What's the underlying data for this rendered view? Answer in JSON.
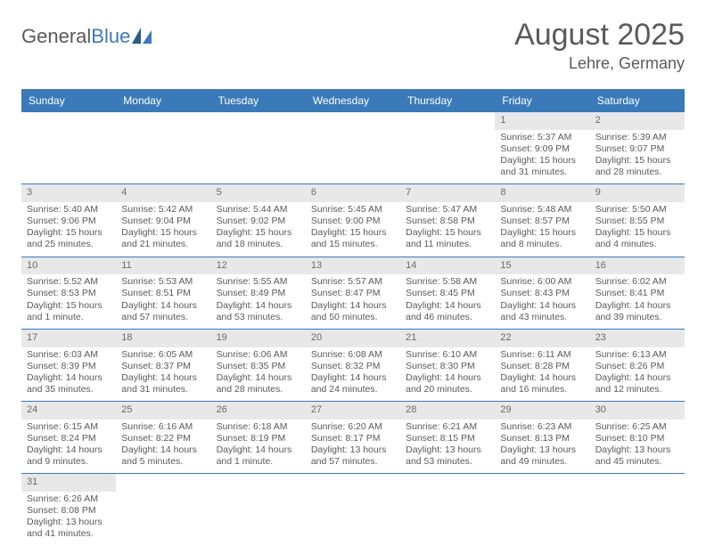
{
  "logo": {
    "text1": "General",
    "text2": "Blue"
  },
  "title": "August 2025",
  "location": "Lehre, Germany",
  "day_names": [
    "Sunday",
    "Monday",
    "Tuesday",
    "Wednesday",
    "Thursday",
    "Friday",
    "Saturday"
  ],
  "colors": {
    "header_bg": "#3a7ab8",
    "header_text": "#ffffff",
    "daynum_bg": "#e8e8e8",
    "week_border": "#3a7ab8",
    "text": "#5a5a5a"
  },
  "weeks": [
    [
      null,
      null,
      null,
      null,
      null,
      {
        "n": "1",
        "sr": "Sunrise: 5:37 AM",
        "ss": "Sunset: 9:09 PM",
        "d1": "Daylight: 15 hours",
        "d2": "and 31 minutes."
      },
      {
        "n": "2",
        "sr": "Sunrise: 5:39 AM",
        "ss": "Sunset: 9:07 PM",
        "d1": "Daylight: 15 hours",
        "d2": "and 28 minutes."
      }
    ],
    [
      {
        "n": "3",
        "sr": "Sunrise: 5:40 AM",
        "ss": "Sunset: 9:06 PM",
        "d1": "Daylight: 15 hours",
        "d2": "and 25 minutes."
      },
      {
        "n": "4",
        "sr": "Sunrise: 5:42 AM",
        "ss": "Sunset: 9:04 PM",
        "d1": "Daylight: 15 hours",
        "d2": "and 21 minutes."
      },
      {
        "n": "5",
        "sr": "Sunrise: 5:44 AM",
        "ss": "Sunset: 9:02 PM",
        "d1": "Daylight: 15 hours",
        "d2": "and 18 minutes."
      },
      {
        "n": "6",
        "sr": "Sunrise: 5:45 AM",
        "ss": "Sunset: 9:00 PM",
        "d1": "Daylight: 15 hours",
        "d2": "and 15 minutes."
      },
      {
        "n": "7",
        "sr": "Sunrise: 5:47 AM",
        "ss": "Sunset: 8:58 PM",
        "d1": "Daylight: 15 hours",
        "d2": "and 11 minutes."
      },
      {
        "n": "8",
        "sr": "Sunrise: 5:48 AM",
        "ss": "Sunset: 8:57 PM",
        "d1": "Daylight: 15 hours",
        "d2": "and 8 minutes."
      },
      {
        "n": "9",
        "sr": "Sunrise: 5:50 AM",
        "ss": "Sunset: 8:55 PM",
        "d1": "Daylight: 15 hours",
        "d2": "and 4 minutes."
      }
    ],
    [
      {
        "n": "10",
        "sr": "Sunrise: 5:52 AM",
        "ss": "Sunset: 8:53 PM",
        "d1": "Daylight: 15 hours",
        "d2": "and 1 minute."
      },
      {
        "n": "11",
        "sr": "Sunrise: 5:53 AM",
        "ss": "Sunset: 8:51 PM",
        "d1": "Daylight: 14 hours",
        "d2": "and 57 minutes."
      },
      {
        "n": "12",
        "sr": "Sunrise: 5:55 AM",
        "ss": "Sunset: 8:49 PM",
        "d1": "Daylight: 14 hours",
        "d2": "and 53 minutes."
      },
      {
        "n": "13",
        "sr": "Sunrise: 5:57 AM",
        "ss": "Sunset: 8:47 PM",
        "d1": "Daylight: 14 hours",
        "d2": "and 50 minutes."
      },
      {
        "n": "14",
        "sr": "Sunrise: 5:58 AM",
        "ss": "Sunset: 8:45 PM",
        "d1": "Daylight: 14 hours",
        "d2": "and 46 minutes."
      },
      {
        "n": "15",
        "sr": "Sunrise: 6:00 AM",
        "ss": "Sunset: 8:43 PM",
        "d1": "Daylight: 14 hours",
        "d2": "and 43 minutes."
      },
      {
        "n": "16",
        "sr": "Sunrise: 6:02 AM",
        "ss": "Sunset: 8:41 PM",
        "d1": "Daylight: 14 hours",
        "d2": "and 39 minutes."
      }
    ],
    [
      {
        "n": "17",
        "sr": "Sunrise: 6:03 AM",
        "ss": "Sunset: 8:39 PM",
        "d1": "Daylight: 14 hours",
        "d2": "and 35 minutes."
      },
      {
        "n": "18",
        "sr": "Sunrise: 6:05 AM",
        "ss": "Sunset: 8:37 PM",
        "d1": "Daylight: 14 hours",
        "d2": "and 31 minutes."
      },
      {
        "n": "19",
        "sr": "Sunrise: 6:06 AM",
        "ss": "Sunset: 8:35 PM",
        "d1": "Daylight: 14 hours",
        "d2": "and 28 minutes."
      },
      {
        "n": "20",
        "sr": "Sunrise: 6:08 AM",
        "ss": "Sunset: 8:32 PM",
        "d1": "Daylight: 14 hours",
        "d2": "and 24 minutes."
      },
      {
        "n": "21",
        "sr": "Sunrise: 6:10 AM",
        "ss": "Sunset: 8:30 PM",
        "d1": "Daylight: 14 hours",
        "d2": "and 20 minutes."
      },
      {
        "n": "22",
        "sr": "Sunrise: 6:11 AM",
        "ss": "Sunset: 8:28 PM",
        "d1": "Daylight: 14 hours",
        "d2": "and 16 minutes."
      },
      {
        "n": "23",
        "sr": "Sunrise: 6:13 AM",
        "ss": "Sunset: 8:26 PM",
        "d1": "Daylight: 14 hours",
        "d2": "and 12 minutes."
      }
    ],
    [
      {
        "n": "24",
        "sr": "Sunrise: 6:15 AM",
        "ss": "Sunset: 8:24 PM",
        "d1": "Daylight: 14 hours",
        "d2": "and 9 minutes."
      },
      {
        "n": "25",
        "sr": "Sunrise: 6:16 AM",
        "ss": "Sunset: 8:22 PM",
        "d1": "Daylight: 14 hours",
        "d2": "and 5 minutes."
      },
      {
        "n": "26",
        "sr": "Sunrise: 6:18 AM",
        "ss": "Sunset: 8:19 PM",
        "d1": "Daylight: 14 hours",
        "d2": "and 1 minute."
      },
      {
        "n": "27",
        "sr": "Sunrise: 6:20 AM",
        "ss": "Sunset: 8:17 PM",
        "d1": "Daylight: 13 hours",
        "d2": "and 57 minutes."
      },
      {
        "n": "28",
        "sr": "Sunrise: 6:21 AM",
        "ss": "Sunset: 8:15 PM",
        "d1": "Daylight: 13 hours",
        "d2": "and 53 minutes."
      },
      {
        "n": "29",
        "sr": "Sunrise: 6:23 AM",
        "ss": "Sunset: 8:13 PM",
        "d1": "Daylight: 13 hours",
        "d2": "and 49 minutes."
      },
      {
        "n": "30",
        "sr": "Sunrise: 6:25 AM",
        "ss": "Sunset: 8:10 PM",
        "d1": "Daylight: 13 hours",
        "d2": "and 45 minutes."
      }
    ],
    [
      {
        "n": "31",
        "sr": "Sunrise: 6:26 AM",
        "ss": "Sunset: 8:08 PM",
        "d1": "Daylight: 13 hours",
        "d2": "and 41 minutes."
      },
      null,
      null,
      null,
      null,
      null,
      null
    ]
  ]
}
